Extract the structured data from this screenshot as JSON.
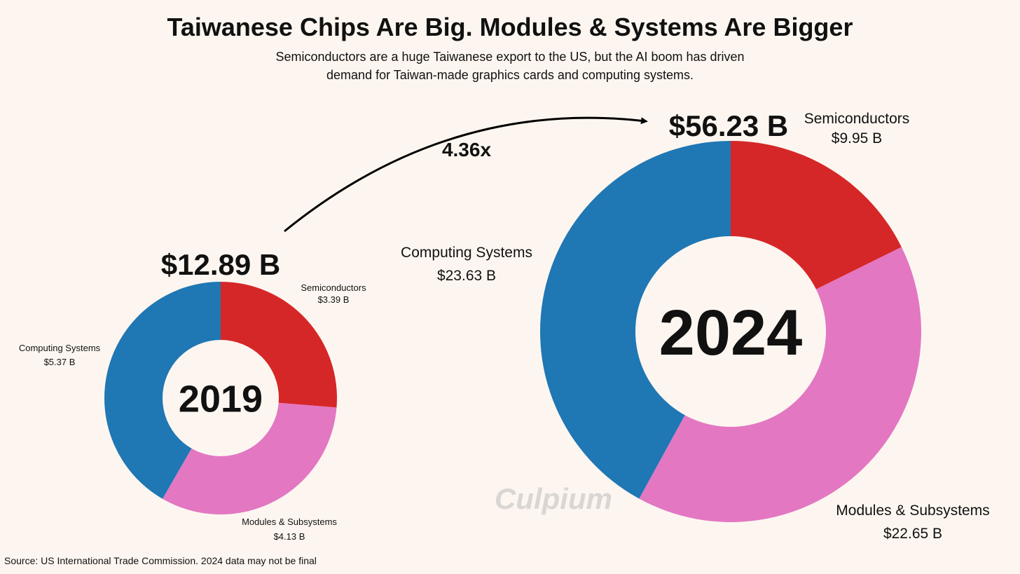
{
  "title": "Taiwanese Chips Are Big. Modules & Systems Are Bigger",
  "subtitle_lines": [
    "Semiconductors are a huge Taiwanese export to the US, but the AI boom has driven",
    "demand for Taiwan-made graphics cards and computing systems."
  ],
  "source": "Source: US International Trade Commission.  2024 data may not be final",
  "watermark": "Culpium",
  "growth_label": "4.36x",
  "colors": {
    "Semiconductors": "#d62728",
    "Modules & Subsystems": "#e377c2",
    "Computing Systems": "#1f77b4",
    "background": "#fdf6f0",
    "watermark": "#d9d6d3"
  },
  "chart_data": [
    {
      "type": "pie",
      "subtype": "donut",
      "center_label": "2019",
      "total_label": "$12.89 B",
      "categories": [
        "Semiconductors",
        "Modules & Subsystems",
        "Computing Systems"
      ],
      "values": [
        3.39,
        4.13,
        5.37
      ],
      "value_labels": [
        "$3.39 B",
        "$4.13 B",
        "$5.37 B"
      ]
    },
    {
      "type": "pie",
      "subtype": "donut",
      "center_label": "2024",
      "total_label": "$56.23 B",
      "categories": [
        "Semiconductors",
        "Modules & Subsystems",
        "Computing Systems"
      ],
      "values": [
        9.95,
        22.65,
        23.63
      ],
      "value_labels": [
        "$9.95 B",
        "$22.65 B",
        "$23.63 B"
      ]
    }
  ]
}
